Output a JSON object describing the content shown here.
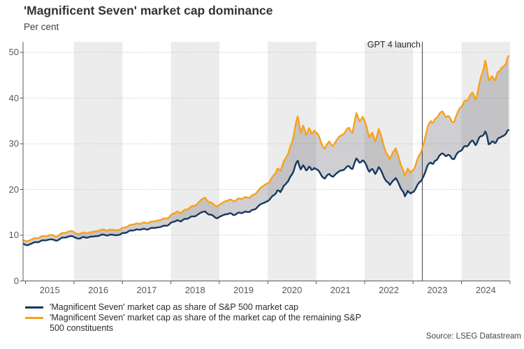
{
  "header": {
    "title": "'Magnificent Seven' market cap dominance",
    "subtitle": "Per cent"
  },
  "source": "Source: LSEG Datastream",
  "chart_data": {
    "type": "line",
    "title": "'Magnificent Seven' market cap dominance",
    "xlabel": "",
    "ylabel": "Per cent",
    "ylim": [
      0,
      50
    ],
    "yticks": [
      0,
      10,
      20,
      30,
      40,
      50
    ],
    "xticks": [
      2015,
      2016,
      2017,
      2018,
      2019,
      2020,
      2021,
      2022,
      2023,
      2024
    ],
    "x_range": [
      2014.95,
      2025.0
    ],
    "shaded_years": [
      2016,
      2018,
      2020,
      2022,
      2024
    ],
    "grid": "horizontal-dotted",
    "legend_position": "bottom-left",
    "annotation": {
      "label": "GPT 4 launch",
      "x": 2023.19
    },
    "style": {
      "band_color": "#ECECEC",
      "grid_color": "#BFBFBF",
      "axis_color": "#595959",
      "vline_color": "#3F3F3F",
      "fill_color": "rgba(128,130,134,0.38)"
    },
    "x": [
      2014.96,
      2015.04,
      2015.13,
      2015.21,
      2015.29,
      2015.38,
      2015.46,
      2015.54,
      2015.63,
      2015.71,
      2015.79,
      2015.88,
      2015.96,
      2016.04,
      2016.13,
      2016.21,
      2016.29,
      2016.38,
      2016.46,
      2016.54,
      2016.63,
      2016.71,
      2016.79,
      2016.88,
      2016.96,
      2017.04,
      2017.13,
      2017.21,
      2017.29,
      2017.38,
      2017.46,
      2017.54,
      2017.63,
      2017.71,
      2017.79,
      2017.88,
      2017.96,
      2018.04,
      2018.13,
      2018.21,
      2018.29,
      2018.38,
      2018.46,
      2018.54,
      2018.63,
      2018.71,
      2018.79,
      2018.88,
      2018.96,
      2019.04,
      2019.13,
      2019.21,
      2019.29,
      2019.38,
      2019.46,
      2019.54,
      2019.63,
      2019.71,
      2019.79,
      2019.88,
      2019.96,
      2020.04,
      2020.13,
      2020.2,
      2020.26,
      2020.33,
      2020.42,
      2020.5,
      2020.56,
      2020.62,
      2020.68,
      2020.73,
      2020.79,
      2020.85,
      2020.9,
      2020.96,
      2021.04,
      2021.1,
      2021.18,
      2021.27,
      2021.35,
      2021.44,
      2021.52,
      2021.6,
      2021.68,
      2021.75,
      2021.83,
      2021.89,
      2021.96,
      2022.04,
      2022.1,
      2022.16,
      2022.22,
      2022.29,
      2022.37,
      2022.45,
      2022.52,
      2022.58,
      2022.64,
      2022.72,
      2022.79,
      2022.83,
      2022.89,
      2022.95,
      2023.0,
      2023.08,
      2023.16,
      2023.24,
      2023.3,
      2023.37,
      2023.42,
      2023.48,
      2023.54,
      2023.6,
      2023.66,
      2023.72,
      2023.79,
      2023.85,
      2023.91,
      2023.97,
      2024.04,
      2024.1,
      2024.17,
      2024.23,
      2024.29,
      2024.35,
      2024.42,
      2024.49,
      2024.53,
      2024.56,
      2024.62,
      2024.68,
      2024.73,
      2024.78,
      2024.83,
      2024.92,
      2024.97
    ],
    "series": [
      {
        "name": "'Magnificent Seven' market cap as share of S&P 500 market cap",
        "color": "#17375E",
        "values": [
          8.1,
          7.8,
          8.2,
          8.5,
          8.6,
          8.9,
          9.0,
          9.1,
          8.8,
          9.2,
          9.5,
          9.7,
          9.8,
          9.4,
          9.3,
          9.6,
          9.5,
          9.7,
          9.8,
          10.0,
          10.1,
          10.0,
          10.1,
          10.0,
          10.2,
          10.5,
          10.9,
          11.0,
          11.3,
          11.2,
          11.4,
          11.3,
          11.6,
          11.7,
          11.8,
          12.1,
          12.3,
          12.9,
          13.3,
          13.0,
          13.6,
          13.8,
          14.1,
          14.4,
          15.0,
          15.2,
          14.5,
          14.2,
          13.7,
          14.2,
          14.6,
          14.8,
          14.4,
          14.9,
          14.8,
          15.2,
          15.1,
          15.6,
          16.2,
          16.9,
          17.3,
          17.8,
          18.8,
          19.8,
          19.4,
          20.8,
          21.8,
          23.3,
          25.0,
          26.3,
          24.4,
          25.3,
          24.2,
          25.0,
          24.3,
          24.7,
          24.2,
          23.2,
          22.4,
          23.4,
          22.8,
          23.7,
          24.2,
          24.6,
          25.1,
          24.5,
          26.8,
          25.9,
          26.4,
          25.2,
          23.9,
          24.5,
          23.4,
          24.9,
          23.4,
          21.8,
          21.0,
          21.9,
          22.5,
          20.9,
          19.6,
          18.5,
          19.7,
          19.1,
          19.4,
          20.8,
          21.8,
          23.5,
          25.3,
          25.9,
          25.7,
          26.4,
          27.4,
          27.9,
          27.4,
          27.6,
          26.9,
          26.7,
          27.9,
          28.4,
          29.2,
          29.4,
          30.2,
          30.7,
          29.7,
          31.0,
          31.7,
          32.7,
          31.5,
          29.9,
          30.4,
          30.2,
          30.7,
          31.3,
          31.6,
          32.2,
          33.0
        ]
      },
      {
        "name": "'Magnificent Seven' market cap as share of the market cap of the remaining S&P 500 constituents",
        "color": "#F9A11B",
        "values": [
          8.9,
          8.7,
          9.1,
          9.4,
          9.5,
          9.8,
          9.9,
          10.1,
          9.7,
          10.2,
          10.5,
          10.8,
          10.9,
          10.4,
          10.3,
          10.6,
          10.5,
          10.7,
          10.9,
          11.1,
          11.2,
          11.1,
          11.2,
          11.1,
          11.3,
          11.7,
          12.1,
          12.3,
          12.6,
          12.5,
          12.8,
          12.7,
          13.0,
          13.2,
          13.3,
          13.7,
          13.9,
          14.7,
          15.2,
          14.8,
          15.6,
          15.9,
          16.4,
          16.8,
          17.8,
          18.2,
          17.2,
          16.8,
          16.3,
          16.9,
          17.5,
          17.8,
          17.4,
          18.0,
          17.9,
          18.4,
          18.2,
          18.9,
          19.6,
          20.6,
          21.2,
          21.7,
          23.2,
          24.6,
          24.0,
          26.2,
          27.8,
          30.3,
          33.3,
          36.0,
          32.4,
          34.0,
          32.0,
          33.4,
          32.2,
          32.9,
          32.0,
          30.3,
          28.9,
          30.5,
          29.5,
          31.1,
          31.9,
          32.6,
          33.5,
          32.4,
          36.7,
          35.0,
          35.9,
          33.7,
          31.4,
          32.4,
          30.5,
          33.2,
          30.6,
          27.9,
          26.6,
          28.1,
          29.0,
          26.4,
          24.4,
          23.0,
          24.6,
          23.7,
          24.1,
          26.3,
          28.0,
          31.0,
          33.6,
          35.0,
          34.7,
          35.6,
          36.6,
          37.1,
          36.1,
          36.1,
          35.0,
          34.8,
          36.6,
          37.9,
          38.9,
          39.4,
          40.5,
          41.2,
          39.6,
          42.1,
          45.2,
          48.2,
          46.0,
          43.9,
          44.7,
          43.8,
          45.2,
          45.8,
          46.7,
          47.5,
          49.2
        ]
      }
    ]
  },
  "legend": {
    "items": [
      {
        "label": "'Magnificent Seven' market cap as share of S&P 500 market cap",
        "color": "#17375E"
      },
      {
        "label": "'Magnificent Seven' market cap as share of the market cap of the remaining S&P 500 constituents",
        "color": "#F9A11B"
      }
    ]
  }
}
